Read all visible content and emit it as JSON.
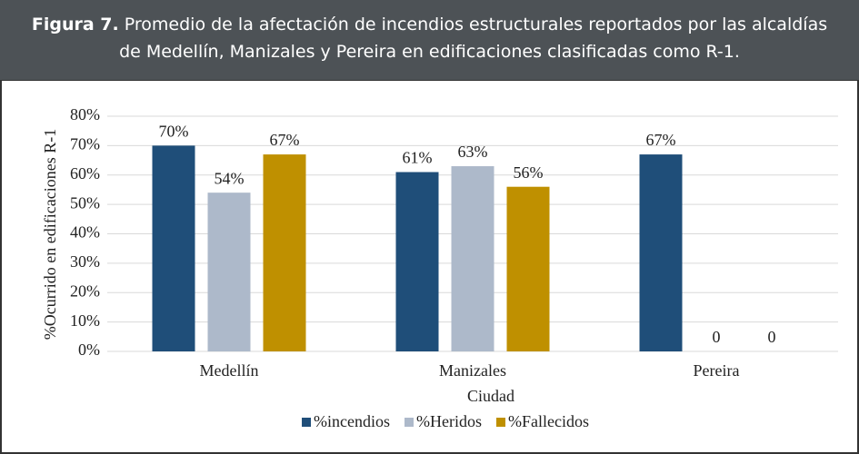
{
  "chart_data": {
    "type": "bar",
    "title_label": "Figura 7.",
    "title": "Promedio de la afectación de incendios estructurales reportados por las alcaldías de Medellín, Manizales y Pereira en edificaciones clasificadas como R-1.",
    "categories": [
      "Medellín",
      "Manizales",
      "Pereira"
    ],
    "series": [
      {
        "name": "%incendios",
        "color": "#1f4e79",
        "values": [
          70,
          61,
          67
        ],
        "value_labels": [
          "70%",
          "61%",
          "67%"
        ]
      },
      {
        "name": "%Heridos",
        "color": "#adb9ca",
        "values": [
          54,
          63,
          0
        ],
        "value_labels": [
          "54%",
          "63%",
          "0"
        ]
      },
      {
        "name": "%Fallecidos",
        "color": "#bf9000",
        "values": [
          67,
          56,
          0
        ],
        "value_labels": [
          "67%",
          "56%",
          "0"
        ]
      }
    ],
    "xlabel": "Ciudad",
    "ylabel": "%Ocurrido en edificaciones R-1",
    "ylim": [
      0,
      80
    ],
    "yticks": [
      {
        "value": 0,
        "label": "0%"
      },
      {
        "value": 10,
        "label": "10%"
      },
      {
        "value": 20,
        "label": "20%"
      },
      {
        "value": 30,
        "label": "30%"
      },
      {
        "value": 40,
        "label": "40%"
      },
      {
        "value": 50,
        "label": "50%"
      },
      {
        "value": 60,
        "label": "60%"
      },
      {
        "value": 70,
        "label": "70%"
      },
      {
        "value": 80,
        "label": "80%"
      }
    ],
    "grid": true,
    "legend": "bottom"
  }
}
